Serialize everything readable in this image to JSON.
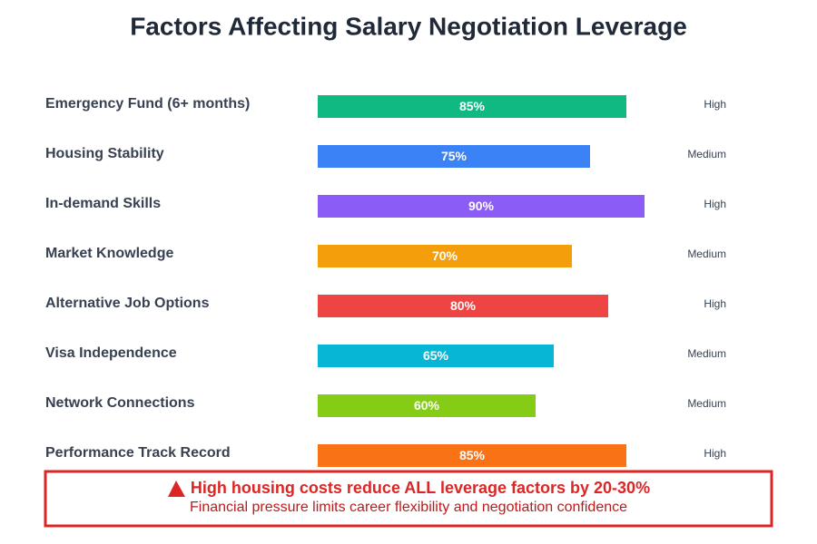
{
  "chart_data": {
    "type": "bar",
    "orientation": "horizontal",
    "title": "Factors Affecting Salary Negotiation Leverage",
    "categories": [
      "Emergency Fund (6+ months)",
      "Housing Stability",
      "In-demand Skills",
      "Market Knowledge",
      "Alternative Job Options",
      "Visa Independence",
      "Network Connections",
      "Performance Track Record"
    ],
    "values": [
      85,
      75,
      90,
      70,
      80,
      65,
      60,
      85
    ],
    "value_labels": [
      "85%",
      "75%",
      "90%",
      "70%",
      "80%",
      "65%",
      "60%",
      "85%"
    ],
    "levels": [
      "High",
      "Medium",
      "High",
      "Medium",
      "High",
      "Medium",
      "Medium",
      "High"
    ],
    "colors": [
      "#10b981",
      "#3b82f6",
      "#8b5cf6",
      "#f59e0b",
      "#ef4444",
      "#06b6d4",
      "#84cc16",
      "#f97316"
    ],
    "xlim": [
      0,
      100
    ],
    "warning": {
      "title": "High housing costs reduce ALL leverage factors by 20-30%",
      "text": "Financial pressure limits career flexibility and negotiation confidence"
    }
  }
}
